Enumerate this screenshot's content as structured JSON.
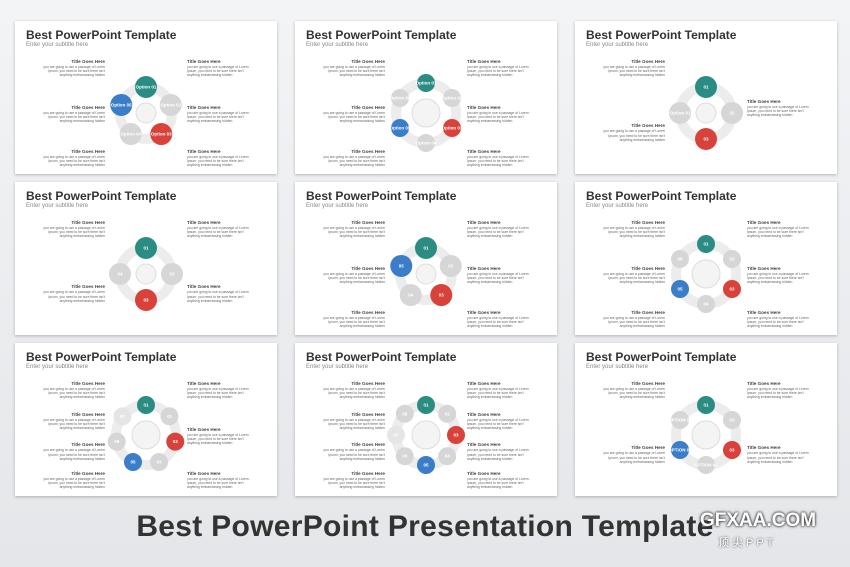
{
  "slides": [
    {
      "title": "Best PowerPoint Template",
      "subtitle": "Enter your subtitle here",
      "left": [
        {
          "heading": "Title Goes Here",
          "body": "you are going to use a passage of Lorem Ipsum, you need to be sure there isn't anything embarrassing hidden"
        },
        {
          "heading": "Title Goes Here",
          "body": "you are going to use a passage of Lorem Ipsum, you need to be sure there isn't anything embarrassing hidden"
        },
        {
          "heading": "Title Goes Here",
          "body": "you are going to use a passage of Lorem Ipsum, you need to be sure there isn't anything embarrassing hidden"
        }
      ],
      "right": [
        {
          "heading": "Title Goes Here",
          "body": "you are going to use a passage of Lorem Ipsum, you need to be sure there isn't anything embarrassing hidden"
        },
        {
          "heading": "Title Goes Here",
          "body": "you are going to use a passage of Lorem Ipsum, you need to be sure there isn't anything embarrassing hidden"
        },
        {
          "heading": "Title Goes Here",
          "body": "you are going to use a passage of Lorem Ipsum, you need to be sure there isn't anything embarrassing hidden"
        }
      ],
      "markers": [
        "Option 01",
        "Option 02",
        "Option 03",
        "Option 04",
        "Option 05"
      ]
    },
    {
      "title": "Best PowerPoint Template",
      "subtitle": "Enter your subtitle here",
      "left": [
        {
          "heading": "Title Goes Here",
          "body": "you are going to use a passage of Lorem Ipsum, you need to be sure there isn't anything embarrassing hidden"
        },
        {
          "heading": "Title Goes Here",
          "body": "you are going to use a passage of Lorem Ipsum, you need to be sure there isn't anything embarrassing hidden"
        },
        {
          "heading": "Title Goes Here",
          "body": "you are going to use a passage of Lorem Ipsum, you need to be sure there isn't anything embarrassing hidden"
        }
      ],
      "right": [
        {
          "heading": "Title Goes Here",
          "body": "you are going to use a passage of Lorem Ipsum, you need to be sure there isn't anything embarrassing hidden"
        },
        {
          "heading": "Title Goes Here",
          "body": "you are going to use a passage of Lorem Ipsum, you need to be sure there isn't anything embarrassing hidden"
        },
        {
          "heading": "Title Goes Here",
          "body": "you are going to use a passage of Lorem Ipsum, you need to be sure there isn't anything embarrassing hidden"
        }
      ],
      "markers": [
        "Option 01",
        "Option 02",
        "Option 03",
        "Option 04",
        "Option 05",
        "Option 06"
      ]
    },
    {
      "title": "Best PowerPoint Template",
      "subtitle": "Enter your subtitle here",
      "left": [
        {
          "heading": "Title Goes Here",
          "body": "you are going to use a passage of Lorem Ipsum, you need to be sure there isn't anything embarrassing hidden"
        },
        {
          "heading": "Title Goes Here",
          "body": "you are going to use a passage of Lorem Ipsum, you need to be sure there isn't anything embarrassing hidden"
        }
      ],
      "right": [
        {
          "heading": "Title Goes Here",
          "body": "you are going to use a passage of Lorem Ipsum, you need to be sure there isn't anything embarrassing hidden"
        }
      ],
      "markers": [
        "01",
        "02",
        "03",
        "Option 01"
      ]
    },
    {
      "title": "Best PowerPoint Template",
      "subtitle": "Enter your subtitle here",
      "left": [
        {
          "heading": "Title Goes Here",
          "body": "you are going to use a passage of Lorem Ipsum, you need to be sure there isn't anything embarrassing hidden"
        },
        {
          "heading": "Title Goes Here",
          "body": "you are going to use a passage of Lorem Ipsum, you need to be sure there isn't anything embarrassing hidden"
        }
      ],
      "right": [
        {
          "heading": "Title Goes Here",
          "body": "you are going to use a passage of Lorem Ipsum, you need to be sure there isn't anything embarrassing hidden"
        },
        {
          "heading": "Title Goes Here",
          "body": "you are going to use a passage of Lorem Ipsum, you need to be sure there isn't anything embarrassing hidden"
        }
      ],
      "markers": [
        "01",
        "02",
        "03",
        "04"
      ]
    },
    {
      "title": "Best PowerPoint Template",
      "subtitle": "Enter your subtitle here",
      "left": [
        {
          "heading": "Title Goes Here",
          "body": "you are going to use a passage of Lorem Ipsum, you need to be sure there isn't anything embarrassing hidden"
        },
        {
          "heading": "Title Goes Here",
          "body": "you are going to use a passage of Lorem Ipsum, you need to be sure there isn't anything embarrassing hidden"
        },
        {
          "heading": "Title Goes Here",
          "body": "you are going to use a passage of Lorem Ipsum, you need to be sure there isn't anything embarrassing hidden"
        }
      ],
      "right": [
        {
          "heading": "Title Goes Here",
          "body": "you are going to use a passage of Lorem Ipsum, you need to be sure there isn't anything embarrassing hidden"
        },
        {
          "heading": "Title Goes Here",
          "body": "you are going to use a passage of Lorem Ipsum, you need to be sure there isn't anything embarrassing hidden"
        },
        {
          "heading": "Title Goes Here",
          "body": "you are going to use a passage of Lorem Ipsum, you need to be sure there isn't anything embarrassing hidden"
        }
      ],
      "markers": [
        "01",
        "02",
        "03",
        "04",
        "05"
      ]
    },
    {
      "title": "Best PowerPoint Template",
      "subtitle": "Enter your subtitle here",
      "left": [
        {
          "heading": "Title Goes Here",
          "body": "you are going to use a passage of Lorem Ipsum, you need to be sure there isn't anything embarrassing hidden"
        },
        {
          "heading": "Title Goes Here",
          "body": "you are going to use a passage of Lorem Ipsum, you need to be sure there isn't anything embarrassing hidden"
        },
        {
          "heading": "Title Goes Here",
          "body": "you are going to use a passage of Lorem Ipsum, you need to be sure there isn't anything embarrassing hidden"
        }
      ],
      "right": [
        {
          "heading": "Title Goes Here",
          "body": "you are going to use a passage of Lorem Ipsum, you need to be sure there isn't anything embarrassing hidden"
        },
        {
          "heading": "Title Goes Here",
          "body": "you are going to use a passage of Lorem Ipsum, you need to be sure there isn't anything embarrassing hidden"
        },
        {
          "heading": "Title Goes Here",
          "body": "you are going to use a passage of Lorem Ipsum, you need to be sure there isn't anything embarrassing hidden"
        }
      ],
      "markers": [
        "01",
        "02",
        "03",
        "04",
        "05",
        "06"
      ]
    },
    {
      "title": "Best PowerPoint Template",
      "subtitle": "Enter your subtitle here",
      "left": [
        {
          "heading": "Title Goes Here",
          "body": "you are going to use a passage of Lorem Ipsum, you need to be sure there isn't anything embarrassing hidden"
        },
        {
          "heading": "Title Goes Here",
          "body": "you are going to use a passage of Lorem Ipsum, you need to be sure there isn't anything embarrassing hidden"
        },
        {
          "heading": "Title Goes Here",
          "body": "you are going to use a passage of Lorem Ipsum, you need to be sure there isn't anything embarrassing hidden"
        },
        {
          "heading": "Title Goes Here",
          "body": "you are going to use a passage of Lorem Ipsum, you need to be sure there isn't anything embarrassing hidden"
        }
      ],
      "right": [
        {
          "heading": "Title Goes Here",
          "body": "you are going to use a passage of Lorem Ipsum, you need to be sure there isn't anything embarrassing hidden"
        },
        {
          "heading": "Title Goes Here",
          "body": "you are going to use a passage of Lorem Ipsum, you need to be sure there isn't anything embarrassing hidden"
        },
        {
          "heading": "Title Goes Here",
          "body": "you are going to use a passage of Lorem Ipsum, you need to be sure there isn't anything embarrassing hidden"
        }
      ],
      "markers": [
        "01",
        "02",
        "03",
        "04",
        "05",
        "06",
        "07"
      ]
    },
    {
      "title": "Best PowerPoint Template",
      "subtitle": "Enter your subtitle here",
      "left": [
        {
          "heading": "Title Goes Here",
          "body": "you are going to use a passage of Lorem Ipsum, you need to be sure there isn't anything embarrassing hidden"
        },
        {
          "heading": "Title Goes Here",
          "body": "you are going to use a passage of Lorem Ipsum, you need to be sure there isn't anything embarrassing hidden"
        },
        {
          "heading": "Title Goes Here",
          "body": "you are going to use a passage of Lorem Ipsum, you need to be sure there isn't anything embarrassing hidden"
        },
        {
          "heading": "Title Goes Here",
          "body": "you are going to use a passage of Lorem Ipsum, you need to be sure there isn't anything embarrassing hidden"
        }
      ],
      "right": [
        {
          "heading": "Title Goes Here",
          "body": "you are going to use a passage of Lorem Ipsum, you need to be sure there isn't anything embarrassing hidden"
        },
        {
          "heading": "Title Goes Here",
          "body": "you are going to use a passage of Lorem Ipsum, you need to be sure there isn't anything embarrassing hidden"
        },
        {
          "heading": "Title Goes Here",
          "body": "you are going to use a passage of Lorem Ipsum, you need to be sure there isn't anything embarrassing hidden"
        },
        {
          "heading": "Title Goes Here",
          "body": "you are going to use a passage of Lorem Ipsum, you need to be sure there isn't anything embarrassing hidden"
        }
      ],
      "markers": [
        "01",
        "02",
        "03",
        "04",
        "05",
        "06",
        "07",
        "08"
      ]
    },
    {
      "title": "Best PowerPoint Template",
      "subtitle": "Enter your subtitle here",
      "left": [
        {
          "heading": "Title Goes Here",
          "body": "you are going to use a passage of Lorem Ipsum, you need to be sure there isn't anything embarrassing hidden"
        },
        {
          "heading": "Title Goes Here",
          "body": "you are going to use a passage of Lorem Ipsum, you need to be sure there isn't anything embarrassing hidden"
        }
      ],
      "right": [
        {
          "heading": "Title Goes Here",
          "body": "you are going to use a passage of Lorem Ipsum, you need to be sure there isn't anything embarrassing hidden"
        },
        {
          "heading": "Title Goes Here",
          "body": "you are going to use a passage of Lorem Ipsum, you need to be sure there isn't anything embarrassing hidden"
        }
      ],
      "markers": [
        "01",
        "02",
        "03",
        "OPTION 01",
        "OPTION 02",
        "OPTION 03"
      ]
    }
  ],
  "footer": {
    "title": "Best PowerPoint Presentation Template"
  },
  "watermark": {
    "text": "GFXAA.COM",
    "subtext": "顶尖PPT"
  }
}
